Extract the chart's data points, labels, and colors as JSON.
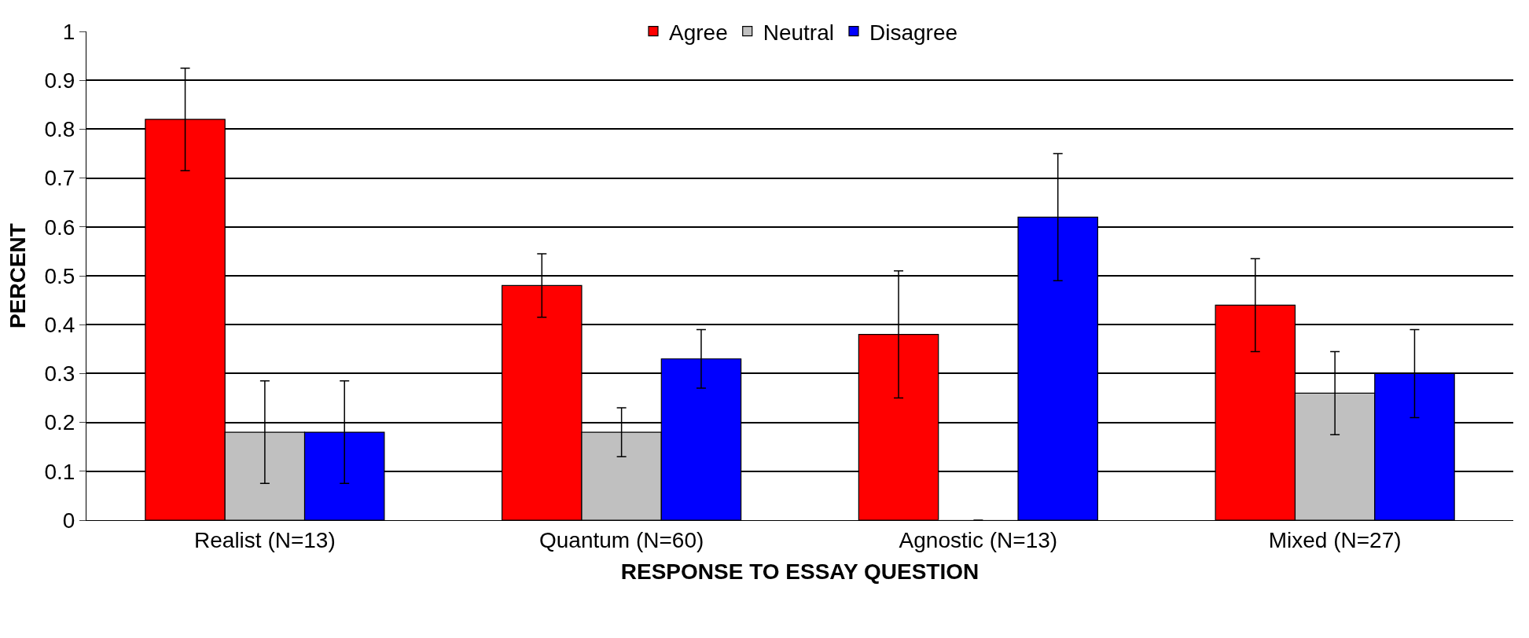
{
  "chart_data": {
    "type": "bar",
    "xlabel": "RESPONSE TO ESSAY QUESTION",
    "ylabel": "PERCENT",
    "categories": [
      "Realist (N=13)",
      "Quantum (N=60)",
      "Agnostic (N=13)",
      "Mixed (N=27)"
    ],
    "series": [
      {
        "name": "Agree",
        "color": "#ff0000",
        "values": [
          0.82,
          0.48,
          0.38,
          0.44
        ],
        "errors": [
          0.105,
          0.065,
          0.13,
          0.095
        ]
      },
      {
        "name": "Neutral",
        "color": "#c0c0c0",
        "values": [
          0.18,
          0.18,
          0,
          0.26
        ],
        "errors": [
          0.105,
          0.05,
          null,
          0.085
        ]
      },
      {
        "name": "Disagree",
        "color": "#0000ff",
        "values": [
          0.18,
          0.33,
          0.62,
          0.3
        ],
        "errors": [
          0.105,
          0.06,
          0.13,
          0.09
        ]
      }
    ],
    "ylim": [
      0,
      1
    ],
    "yticks": [
      0,
      0.1,
      0.2,
      0.3,
      0.4,
      0.5,
      0.6,
      0.7,
      0.8,
      0.9,
      1
    ],
    "grid": "y",
    "legend": "top"
  }
}
